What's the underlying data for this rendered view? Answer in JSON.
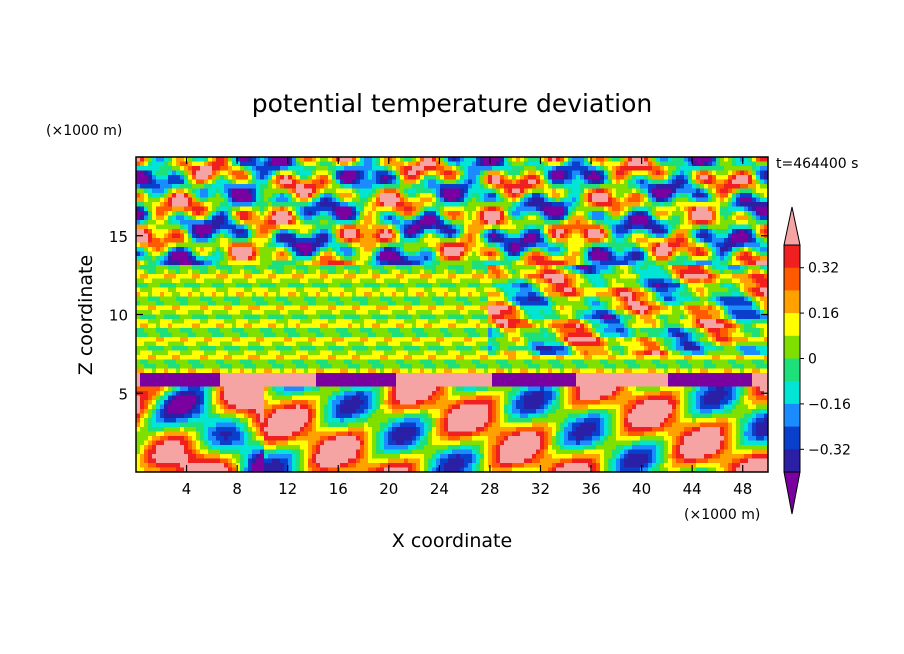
{
  "chart_data": {
    "type": "heatmap",
    "title": "potential temperature deviation",
    "xlabel": "X coordinate",
    "ylabel": "Z coordinate",
    "x_unit": "(×1000 m)",
    "y_unit": "(×1000 m)",
    "time_label": "t=464400 s",
    "xlim": [
      0,
      50
    ],
    "ylim": [
      0,
      20
    ],
    "x_ticks": [
      4,
      8,
      12,
      16,
      20,
      24,
      28,
      32,
      36,
      40,
      44,
      48
    ],
    "y_ticks": [
      5,
      10,
      15
    ],
    "colorbar": {
      "levels": [
        -0.4,
        -0.32,
        -0.24,
        -0.16,
        -0.08,
        0,
        0.08,
        0.16,
        0.24,
        0.32,
        0.4
      ],
      "tick_labels": [
        "0.32",
        "0.16",
        "0",
        "−0.16",
        "−0.32"
      ],
      "tick_values": [
        0.32,
        0.16,
        0,
        -0.16,
        -0.32
      ],
      "colors": [
        "#7a00a0",
        "#2b1fa6",
        "#0a3fcc",
        "#1a8cff",
        "#00e5d4",
        "#1ee07a",
        "#7fe000",
        "#ffff00",
        "#ffa200",
        "#ff5a00",
        "#f02020",
        "#f5a3a3"
      ],
      "under_color": "#7a00a0",
      "over_color": "#f5a3a3"
    }
  }
}
